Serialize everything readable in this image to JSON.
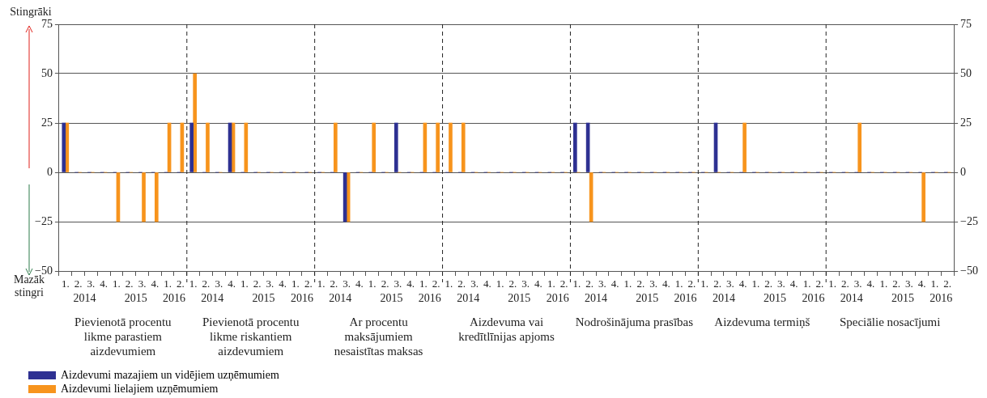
{
  "chart_data": {
    "type": "bar",
    "categories": [
      "1.",
      "2.",
      "3.",
      "4.",
      "1.",
      "2.",
      "3.",
      "4.",
      "1.",
      "2.",
      "1.",
      "2.",
      "3.",
      "4.",
      "1.",
      "2.",
      "3.",
      "4.",
      "1.",
      "2.",
      "1.",
      "2.",
      "3.",
      "4.",
      "1.",
      "2.",
      "3.",
      "4.",
      "1.",
      "2.",
      "1.",
      "2.",
      "3.",
      "4.",
      "1.",
      "2.",
      "3.",
      "4.",
      "1.",
      "2.",
      "1.",
      "2.",
      "3.",
      "4.",
      "1.",
      "2.",
      "3.",
      "4.",
      "1.",
      "2.",
      "1.",
      "2.",
      "3.",
      "4.",
      "1.",
      "2.",
      "3.",
      "4.",
      "1.",
      "2.",
      "1.",
      "2.",
      "3.",
      "4.",
      "1.",
      "2.",
      "3.",
      "4.",
      "1.",
      "2."
    ],
    "series": [
      {
        "name": "Aizdevumi mazajiem un vidējiem uzņēmumiem",
        "color": "#2e3192",
        "values": [
          25,
          0,
          0,
          0,
          0,
          0,
          0,
          0,
          0,
          0,
          25,
          0,
          0,
          25,
          0,
          0,
          0,
          0,
          0,
          0,
          0,
          0,
          -25,
          0,
          0,
          0,
          25,
          0,
          0,
          0,
          0,
          0,
          0,
          0,
          0,
          0,
          0,
          0,
          0,
          0,
          25,
          25,
          0,
          0,
          0,
          0,
          0,
          0,
          0,
          0,
          0,
          25,
          0,
          0,
          0,
          0,
          0,
          0,
          0,
          0,
          0,
          0,
          0,
          0,
          0,
          0,
          0,
          0,
          0,
          0
        ]
      },
      {
        "name": "Aizdevumi lielajiem uzņēmumiem",
        "color": "#f7941d",
        "values": [
          25,
          0,
          0,
          0,
          -25,
          0,
          -25,
          -25,
          25,
          25,
          50,
          25,
          0,
          25,
          25,
          0,
          0,
          0,
          0,
          0,
          0,
          25,
          -25,
          0,
          25,
          0,
          0,
          0,
          25,
          25,
          25,
          25,
          0,
          0,
          0,
          0,
          0,
          0,
          0,
          0,
          0,
          -25,
          0,
          0,
          0,
          0,
          0,
          0,
          0,
          0,
          0,
          0,
          0,
          25,
          0,
          0,
          0,
          0,
          0,
          0,
          0,
          0,
          25,
          0,
          0,
          0,
          0,
          -25,
          0,
          0
        ]
      }
    ],
    "ylim": [
      -50,
      75
    ],
    "yticks": [
      {
        "value": -50,
        "label": "−50"
      },
      {
        "value": -25,
        "label": "−25"
      },
      0,
      25,
      50,
      75
    ],
    "y2lim": [
      -50,
      75
    ],
    "y2ticks": [
      {
        "value": -50,
        "label": "−50"
      },
      {
        "value": -25,
        "label": "−25"
      },
      0,
      25,
      50,
      75
    ],
    "grid": "y",
    "legend": "bottom left",
    "annotations": [
      "Stingrāki",
      "Mazāk stingri",
      "2014",
      "2015",
      "2016",
      "Pievienotā procentu likme parastiem aizdevumiem",
      "2014",
      "2015",
      "2016",
      "Pievienotā procentu likme riskantiem aizdevumiem",
      "2014",
      "2015",
      "2016",
      "Ar procentu maksājumiem nesaistītas maksas",
      "2014",
      "2015",
      "2016",
      "Aizdevuma vai kredītlīnijas apjoms",
      "2014",
      "2015",
      "2016",
      "Nodrošinājuma prasības",
      "2014",
      "2015",
      "2016",
      "Aizdevuma termiņš",
      "2014",
      "2015",
      "2016",
      "Speciālie nosacījumi"
    ]
  }
}
